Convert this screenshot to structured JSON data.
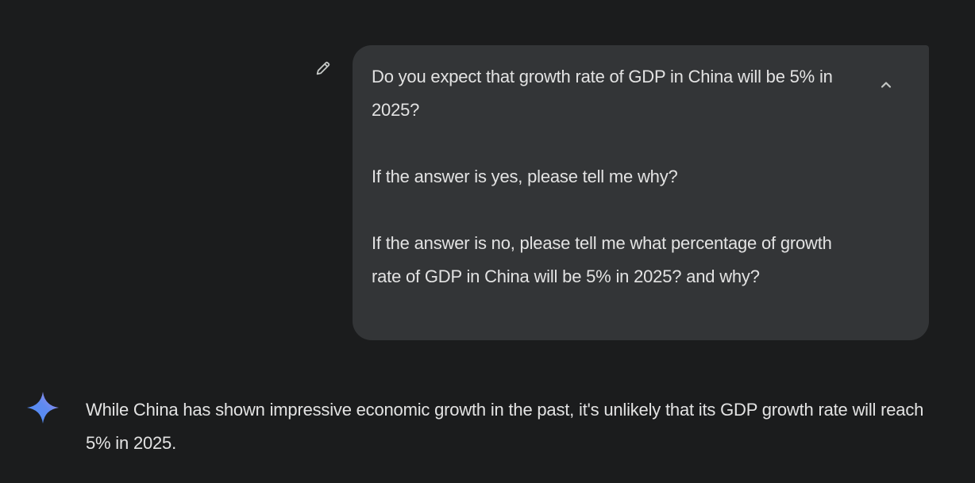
{
  "conversation": {
    "user_message": {
      "paragraphs": [
        "Do you expect that growth rate of GDP in China will be 5% in 2025?",
        "If the answer is yes, please tell me why?",
        "If the answer is no, please tell me what percentage of growth rate of GDP in China will be 5% in 2025? and why?"
      ],
      "edit_icon": "pencil-icon",
      "collapse_icon": "chevron-up-icon"
    },
    "model_response": {
      "avatar_icon": "gemini-sparkle-icon",
      "text": "While China has shown impressive economic growth in the past, it's unlikely that its GDP growth rate will reach 5% in 2025."
    }
  },
  "colors": {
    "background": "#1b1c1d",
    "bubble": "#333537",
    "text": "#e3e3e3",
    "icon": "#c4c7c5"
  }
}
